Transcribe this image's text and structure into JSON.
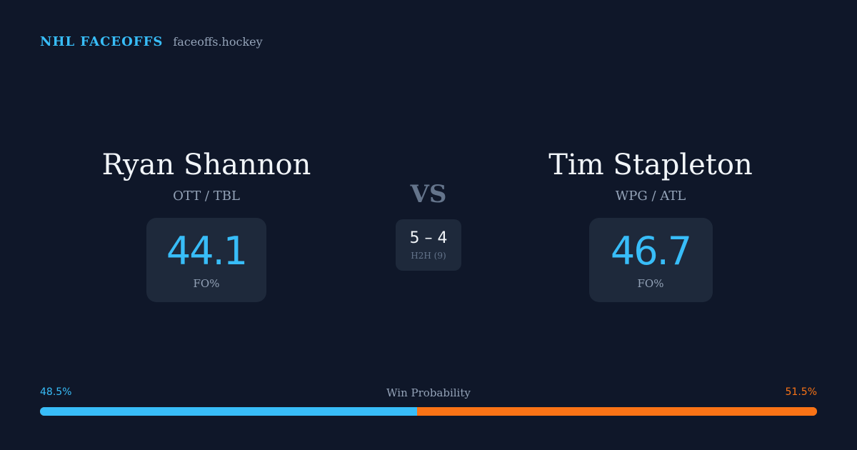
{
  "brand": {
    "name": "NHL FACEOFFS",
    "site": "faceoffs.hockey"
  },
  "players": [
    {
      "name": "Ryan Shannon",
      "teams": "OTT / TBL",
      "fo_value": "44.1",
      "fo_label": "FO%"
    },
    {
      "name": "Tim Stapleton",
      "teams": "WPG / ATL",
      "fo_value": "46.7",
      "fo_label": "FO%"
    }
  ],
  "versus": {
    "label": "VS",
    "h2h_score": "5 – 4",
    "h2h_label": "H2H (9)"
  },
  "win_probability": {
    "label": "Win Probability",
    "left_text": "48.5%",
    "right_text": "51.5%",
    "left_value": 48.5,
    "right_value": 51.5,
    "left_color": "#38bdf8",
    "right_color": "#f97316"
  }
}
